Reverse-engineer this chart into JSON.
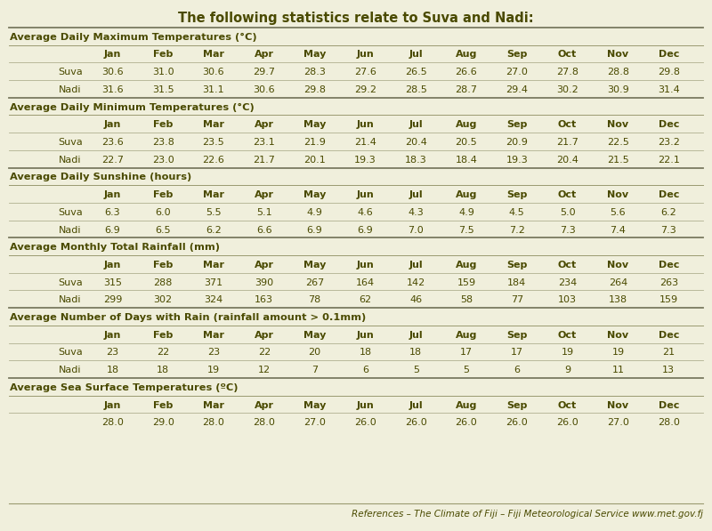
{
  "title": "The following statistics relate to Suva and Nadi:",
  "background_color": "#f0efdc",
  "text_color": "#4a4a00",
  "months": [
    "Jan",
    "Feb",
    "Mar",
    "Apr",
    "May",
    "Jun",
    "Jul",
    "Aug",
    "Sep",
    "Oct",
    "Nov",
    "Dec"
  ],
  "sections": [
    {
      "header": "Average Daily Maximum Temperatures (°C)",
      "rows": [
        {
          "label": "Suva",
          "values": [
            "30.6",
            "31.0",
            "30.6",
            "29.7",
            "28.3",
            "27.6",
            "26.5",
            "26.6",
            "27.0",
            "27.8",
            "28.8",
            "29.8"
          ]
        },
        {
          "label": "Nadi",
          "values": [
            "31.6",
            "31.5",
            "31.1",
            "30.6",
            "29.8",
            "29.2",
            "28.5",
            "28.7",
            "29.4",
            "30.2",
            "30.9",
            "31.4"
          ]
        }
      ]
    },
    {
      "header": "Average Daily Minimum Temperatures (°C)",
      "rows": [
        {
          "label": "Suva",
          "values": [
            "23.6",
            "23.8",
            "23.5",
            "23.1",
            "21.9",
            "21.4",
            "20.4",
            "20.5",
            "20.9",
            "21.7",
            "22.5",
            "23.2"
          ]
        },
        {
          "label": "Nadi",
          "values": [
            "22.7",
            "23.0",
            "22.6",
            "21.7",
            "20.1",
            "19.3",
            "18.3",
            "18.4",
            "19.3",
            "20.4",
            "21.5",
            "22.1"
          ]
        }
      ]
    },
    {
      "header": "Average Daily Sunshine (hours)",
      "rows": [
        {
          "label": "Suva",
          "values": [
            "6.3",
            "6.0",
            "5.5",
            "5.1",
            "4.9",
            "4.6",
            "4.3",
            "4.9",
            "4.5",
            "5.0",
            "5.6",
            "6.2"
          ]
        },
        {
          "label": "Nadi",
          "values": [
            "6.9",
            "6.5",
            "6.2",
            "6.6",
            "6.9",
            "6.9",
            "7.0",
            "7.5",
            "7.2",
            "7.3",
            "7.4",
            "7.3"
          ]
        }
      ]
    },
    {
      "header": "Average Monthly Total Rainfall (mm)",
      "rows": [
        {
          "label": "Suva",
          "values": [
            "315",
            "288",
            "371",
            "390",
            "267",
            "164",
            "142",
            "159",
            "184",
            "234",
            "264",
            "263"
          ]
        },
        {
          "label": "Nadi",
          "values": [
            "299",
            "302",
            "324",
            "163",
            "78",
            "62",
            "46",
            "58",
            "77",
            "103",
            "138",
            "159"
          ]
        }
      ]
    },
    {
      "header": "Average Number of Days with Rain (rainfall amount > 0.1mm)",
      "rows": [
        {
          "label": "Suva",
          "values": [
            "23",
            "22",
            "23",
            "22",
            "20",
            "18",
            "18",
            "17",
            "17",
            "19",
            "19",
            "21"
          ]
        },
        {
          "label": "Nadi",
          "values": [
            "18",
            "18",
            "19",
            "12",
            "7",
            "6",
            "5",
            "5",
            "6",
            "9",
            "11",
            "13"
          ]
        }
      ]
    },
    {
      "header": "Average Sea Surface Temperatures (ºC)",
      "rows": [
        {
          "label": "",
          "values": [
            "28.0",
            "29.0",
            "28.0",
            "28.0",
            "27.0",
            "26.0",
            "26.0",
            "26.0",
            "26.0",
            "26.0",
            "27.0",
            "28.0"
          ]
        }
      ]
    }
  ],
  "footer": "References – The Climate of Fiji – Fiji Meteorological Service www.met.gov.fj"
}
